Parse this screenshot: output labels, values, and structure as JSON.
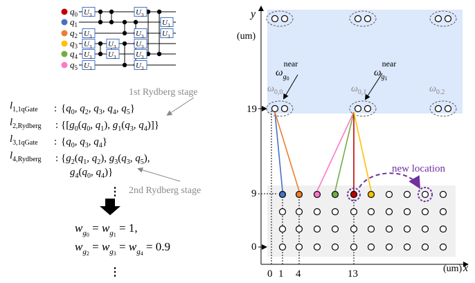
{
  "circuit": {
    "qubits": [
      "q0",
      "q1",
      "q2",
      "q3",
      "q4",
      "q5"
    ],
    "qubit_colors": [
      "#c00000",
      "#4472c4",
      "#ed7d31",
      "#ffc000",
      "#70ad47",
      "#ff77c8"
    ],
    "gate_label": "U3"
  },
  "schedule": {
    "lines": [
      {
        "label_main": "l",
        "label_sub": "1,1qGate",
        "sep": ":",
        "content": "{q0, q2, q3, q4, q5}"
      },
      {
        "label_main": "l",
        "label_sub": "2,Rydberg",
        "sep": ":",
        "content": "{[g0(q0, q1), g1(q3, q4)]}"
      },
      {
        "label_main": "l",
        "label_sub": "3,1qGate",
        "sep": ":",
        "content": "{q0, q3, q4}"
      },
      {
        "label_main": "l",
        "label_sub": "4,Rydberg",
        "sep": ":",
        "content": "{g2(q1, q2), g3(q3, q5),"
      },
      {
        "label_main": "",
        "label_sub": "",
        "sep": "",
        "content": "g4(q0, q4)}"
      }
    ],
    "annotation_1": "1st Rydberg stage",
    "annotation_2": "2nd Rydberg stage",
    "ellipsis": "⋮"
  },
  "weights": {
    "line1": "w_g0 = w_g1 = 1,",
    "line2": "w_g2 = w_g3 = w_g4 = 0.9"
  },
  "layout_panel": {
    "y_axis_label": "y",
    "y_unit": "(um)",
    "x_axis_label": "x",
    "x_unit": "(um)",
    "y_ticks": [
      "19",
      "9",
      "0"
    ],
    "x_ticks": [
      "0",
      "1",
      "4",
      "13"
    ],
    "omega_near_0": "ω_g0^near",
    "omega_near_1": "ω_g1^near",
    "omega_labels": [
      "ω0,0",
      "ω0,1",
      "ω0.2"
    ],
    "new_location": "new location",
    "zone_color": "#dce8fb",
    "storage_color": "#f0f0f0",
    "annotation_color": "#7030a0"
  }
}
